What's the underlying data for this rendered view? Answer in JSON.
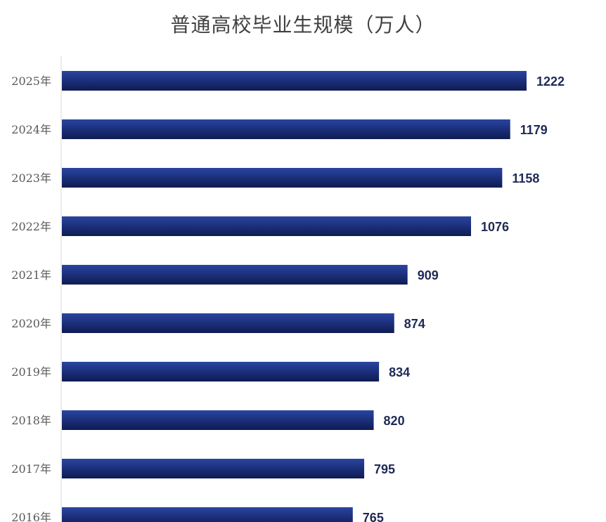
{
  "chart_data": {
    "type": "bar",
    "orientation": "horizontal",
    "title": "普通高校毕业生规模（万人）",
    "categories": [
      "2025年",
      "2024年",
      "2023年",
      "2022年",
      "2021年",
      "2020年",
      "2019年",
      "2018年",
      "2017年",
      "2016年"
    ],
    "values": [
      1222,
      1179,
      1158,
      1076,
      909,
      874,
      834,
      820,
      795,
      765
    ],
    "xlim": [
      0,
      1222
    ],
    "grid": false,
    "legend": "none",
    "bar_color": "#1b2f7a",
    "label_color": "#1f2a56"
  }
}
